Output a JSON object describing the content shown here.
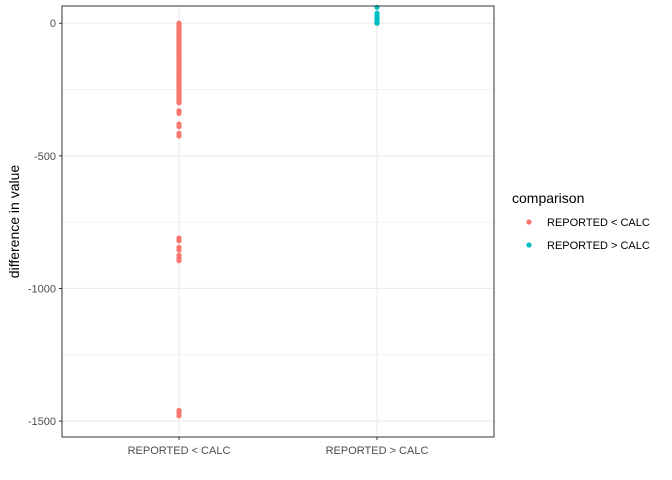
{
  "chart_data": {
    "type": "scatter",
    "categories": [
      "REPORTED < CALC",
      "REPORTED > CALC"
    ],
    "ylabel": "difference in value",
    "xlabel": "",
    "ylim": [
      -1560,
      65
    ],
    "yticks": [
      0,
      -500,
      -1000,
      -1500
    ],
    "ytick_labels": [
      "0",
      "-500",
      "-1000",
      "-1500"
    ],
    "grid": true,
    "legend": {
      "title": "comparison",
      "position": "right",
      "entries": [
        "REPORTED < CALC",
        "REPORTED > CALC"
      ]
    },
    "colors": {
      "REPORTED < CALC": "#F8766D",
      "REPORTED > CALC": "#00BFC4"
    },
    "series": [
      {
        "name": "REPORTED < CALC",
        "values": [
          0,
          -5,
          -10,
          -15,
          -20,
          -25,
          -30,
          -35,
          -40,
          -45,
          -50,
          -55,
          -60,
          -65,
          -70,
          -75,
          -80,
          -85,
          -90,
          -95,
          -100,
          -105,
          -110,
          -115,
          -120,
          -125,
          -130,
          -135,
          -140,
          -145,
          -150,
          -155,
          -160,
          -165,
          -170,
          -175,
          -180,
          -185,
          -190,
          -195,
          -200,
          -205,
          -210,
          -215,
          -220,
          -225,
          -230,
          -235,
          -240,
          -245,
          -250,
          -255,
          -260,
          -265,
          -270,
          -275,
          -280,
          -285,
          -290,
          -295,
          -300,
          -330,
          -340,
          -380,
          -390,
          -415,
          -425,
          -810,
          -820,
          -845,
          -855,
          -875,
          -885,
          -895,
          -1460,
          -1470,
          -1480
        ]
      },
      {
        "name": "REPORTED > CALC",
        "values": [
          0,
          2,
          5,
          8,
          12,
          18,
          22,
          30,
          38,
          60
        ]
      }
    ]
  }
}
